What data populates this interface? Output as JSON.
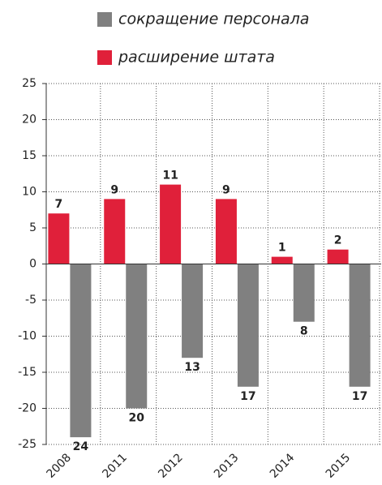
{
  "chart_data": {
    "type": "bar",
    "categories": [
      "2008",
      "2011",
      "2012",
      "2013",
      "2014",
      "2015"
    ],
    "series": [
      {
        "name": "сокращение персонала",
        "color": "#808080",
        "values": [
          -24,
          -20,
          -13,
          -17,
          -8,
          -17
        ],
        "value_labels": [
          "24",
          "20",
          "13",
          "17",
          "8",
          "17"
        ]
      },
      {
        "name": "расширение штата",
        "color": "#e0203a",
        "values": [
          7,
          9,
          11,
          9,
          1,
          2
        ]
      }
    ],
    "ylim": [
      -25,
      25
    ],
    "yticks": [
      -25,
      -20,
      -15,
      -10,
      -5,
      0,
      5,
      10,
      15,
      20,
      25
    ],
    "grid": true,
    "legend": "top"
  }
}
